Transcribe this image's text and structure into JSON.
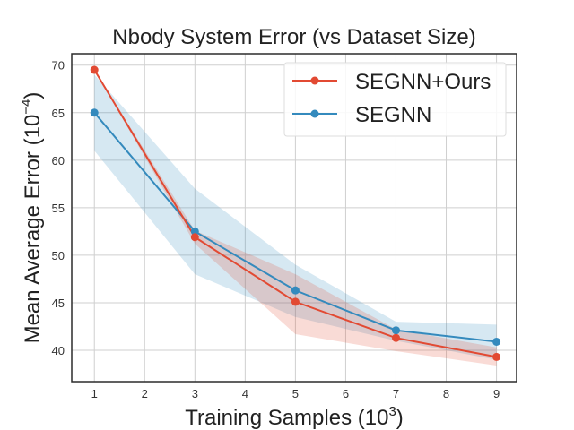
{
  "chart_data": {
    "type": "line",
    "title": "Nbody System Error (vs Dataset Size)",
    "xlabel": "Training Samples",
    "xlabel_exponent": "3",
    "ylabel": "Mean Average Error",
    "ylabel_exponent": "−4",
    "xlim": [
      0.55,
      9.4
    ],
    "ylim": [
      36.7,
      71.2
    ],
    "xticks": [
      1,
      2,
      3,
      4,
      5,
      6,
      7,
      8,
      9
    ],
    "yticks": [
      40,
      45,
      50,
      55,
      60,
      65,
      70
    ],
    "grid": true,
    "legend_position": "top-right",
    "x": [
      1,
      3,
      5,
      7,
      9
    ],
    "series": [
      {
        "name": "SEGNN+Ours",
        "color": "#E24A33",
        "values": [
          69.5,
          51.9,
          45.1,
          41.3,
          39.3
        ],
        "band_lower": [
          69.5,
          51.2,
          41.7,
          39.9,
          38.4
        ],
        "band_upper": [
          69.5,
          52.6,
          48.0,
          42.2,
          40.3
        ]
      },
      {
        "name": "SEGNN",
        "color": "#348ABD",
        "values": [
          65.0,
          52.5,
          46.3,
          42.1,
          40.9
        ],
        "band_lower": [
          61.0,
          48.0,
          43.5,
          41.0,
          39.0
        ],
        "band_upper": [
          69.0,
          57.0,
          49.0,
          43.0,
          42.7
        ]
      }
    ]
  }
}
